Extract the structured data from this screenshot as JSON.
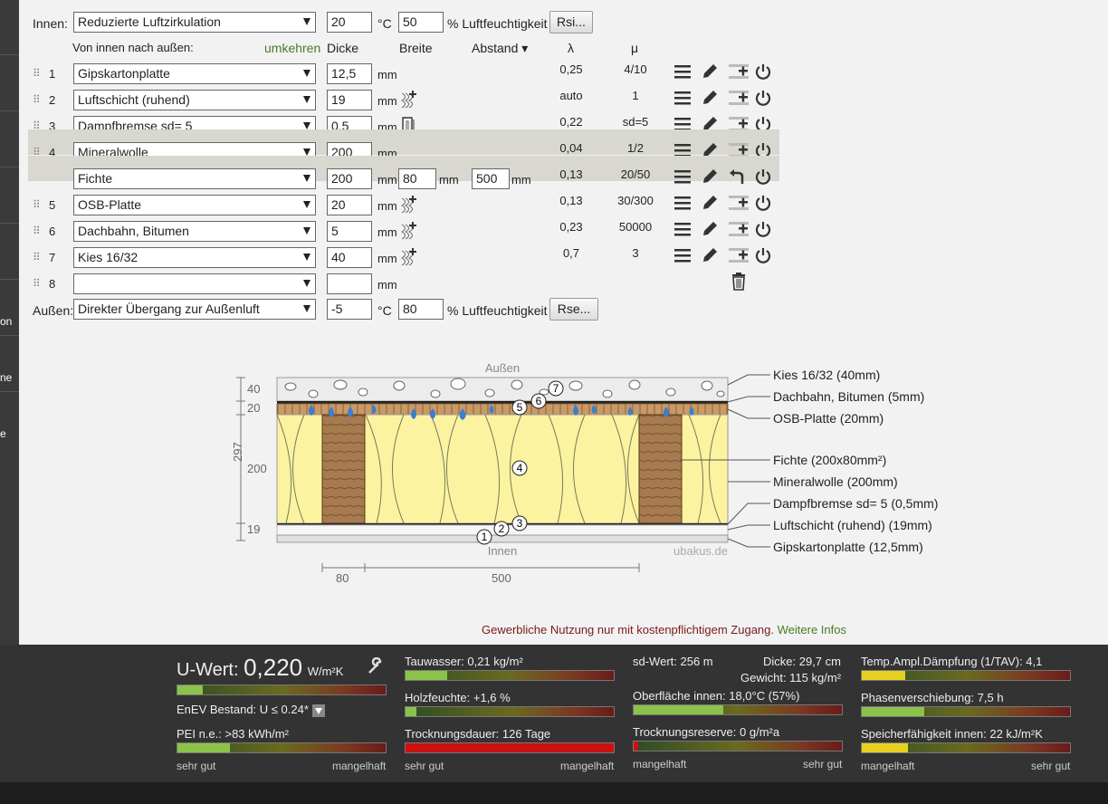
{
  "sidebar": {
    "frag_on": "on",
    "frag_ne": "ne",
    "frag_e": "e"
  },
  "header": {
    "innen_label": "Innen:",
    "innen_select": "Reduzierte Luftzirkulation",
    "innen_temp": "20",
    "temp_unit": "°C",
    "innen_rh": "50",
    "rh_unit": "% Luftfeuchtigkeit",
    "rsi_button": "Rsi...",
    "order_label": "Von innen nach außen:",
    "reverse_link": "umkehren",
    "col_dicke": "Dicke",
    "col_breite": "Breite",
    "col_abstand": "Abstand ▾",
    "col_lambda": "λ",
    "col_mu": "μ"
  },
  "layers": [
    {
      "num": "1",
      "material": "Gipskartonplatte",
      "thickness": "12,5",
      "unit": "mm",
      "lambda": "0,25",
      "mu": "4/10"
    },
    {
      "num": "2",
      "material": "Luftschicht (ruhend)",
      "thickness": "19",
      "unit": "mm",
      "lambda": "auto",
      "mu": "1"
    },
    {
      "num": "3",
      "material": "Dampfbremse sd= 5",
      "thickness": "0,5",
      "unit": "mm",
      "lambda": "0,22",
      "mu": "sd=5"
    },
    {
      "num": "4",
      "material": "Mineralwolle",
      "thickness": "200",
      "unit": "mm",
      "lambda": "0,04",
      "mu": "1/2"
    },
    {
      "num": "",
      "material": "Fichte",
      "thickness": "200",
      "unit": "mm",
      "width": "80",
      "spacing": "500",
      "lambda": "0,13",
      "mu": "20/50"
    },
    {
      "num": "5",
      "material": "OSB-Platte",
      "thickness": "20",
      "unit": "mm",
      "lambda": "0,13",
      "mu": "30/300"
    },
    {
      "num": "6",
      "material": "Dachbahn, Bitumen",
      "thickness": "5",
      "unit": "mm",
      "lambda": "0,23",
      "mu": "50000"
    },
    {
      "num": "7",
      "material": "Kies 16/32",
      "thickness": "40",
      "unit": "mm",
      "lambda": "0,7",
      "mu": "3"
    },
    {
      "num": "8",
      "material": "",
      "thickness": "",
      "unit": "mm",
      "lambda": "",
      "mu": ""
    }
  ],
  "outside": {
    "label": "Außen:",
    "select": "Direkter Übergang zur Außenluft",
    "temp": "-5",
    "temp_unit": "°C",
    "rh": "80",
    "rh_unit": "% Luftfeuchtigkeit",
    "rse_button": "Rse..."
  },
  "diagram": {
    "top_label": "Außen",
    "bottom_label": "Innen",
    "watermark": "ubakus.de",
    "dim_40": "40",
    "dim_20": "20",
    "dim_200": "200",
    "dim_19": "19",
    "dim_297": "297",
    "dim_80": "80",
    "dim_500": "500",
    "markers": [
      "1",
      "2",
      "3",
      "4",
      "5",
      "6",
      "7"
    ],
    "legend": [
      "Kies 16/32 (40mm)",
      "Dachbahn, Bitumen (5mm)",
      "OSB-Platte (20mm)",
      "Fichte (200x80mm²)",
      "Mineralwolle (200mm)",
      "Dampfbremse sd= 5 (0,5mm)",
      "Luftschicht (ruhend) (19mm)",
      "Gipskartonplatte (12,5mm)"
    ]
  },
  "notice": {
    "text": "Gewerbliche Nutzung nur mit kostenpflichtigem Zugang.",
    "link": "Weitere Infos"
  },
  "colors": {
    "accent_green": "#4a7a23",
    "notice_red": "#7a1a1a",
    "bar_green": "#8bc34a",
    "bar_yellow": "#e8d020",
    "bar_red": "#cc1111",
    "insulation": "#fbf3a0",
    "wood": "#a77a4f"
  },
  "metrics": {
    "uwert_label": "U-Wert:",
    "uwert_value": "0,220",
    "uwert_unit": "W/m²K",
    "uwert_level": 0.12,
    "enev": "EnEV Bestand: U ≤ 0.24*",
    "pei": "PEI n.e.: >83 kWh/m²",
    "pei_level": 0.25,
    "tauwasser": "Tauwasser: 0,21 kg/m²",
    "tauwasser_level": 0.2,
    "holzfeuchte": "Holzfeuchte: +1,6 %",
    "holzfeuchte_level": 0.05,
    "trocknungsdauer": "Trocknungsdauer: 126 Tage",
    "trocknungsdauer_level": 1.0,
    "sdwert": "sd-Wert: 256 m",
    "dicke": "Dicke: 29,7 cm",
    "gewicht": "Gewicht: 115 kg/m²",
    "oberflaeche": "Oberfläche innen: 18,0°C (57%)",
    "oberflaeche_level": 0.43,
    "trocknungsreserve": "Trocknungsreserve: 0 g/m²a",
    "trocknungsreserve_level": 0.02,
    "tav": "Temp.Ampl.Dämpfung (1/TAV): 4,1",
    "tav_level": 0.21,
    "phase": "Phasenverschiebung: 7,5 h",
    "phase_level": 0.3,
    "speicher": "Speicherfähigkeit innen: 22 kJ/m²K",
    "speicher_level": 0.22,
    "scale_good": "sehr gut",
    "scale_bad": "mangelhaft"
  }
}
